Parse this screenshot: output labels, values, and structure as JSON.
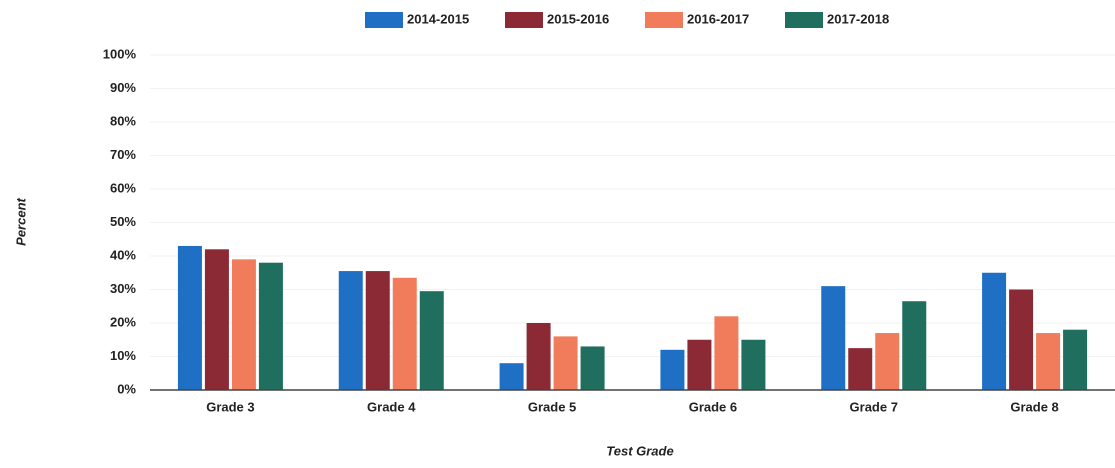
{
  "chart_data": {
    "type": "bar",
    "categories": [
      "Grade 3",
      "Grade 4",
      "Grade 5",
      "Grade 6",
      "Grade 7",
      "Grade 8"
    ],
    "series": [
      {
        "name": "2014-2015",
        "color": "#1f6fc5",
        "values": [
          43,
          35.5,
          8,
          12,
          31,
          35
        ]
      },
      {
        "name": "2015-2016",
        "color": "#8b2a35",
        "values": [
          42,
          35.5,
          20,
          15,
          12.5,
          30
        ]
      },
      {
        "name": "2016-2017",
        "color": "#f07c5c",
        "values": [
          39,
          33.5,
          16,
          22,
          17,
          17
        ]
      },
      {
        "name": "2017-2018",
        "color": "#1f6e5e",
        "values": [
          38,
          29.5,
          13,
          15,
          26.5,
          18
        ]
      }
    ],
    "ylim": [
      0,
      100
    ],
    "yticks": [
      {
        "value": 0,
        "label": "0%"
      },
      {
        "value": 10,
        "label": "10%"
      },
      {
        "value": 20,
        "label": "20%"
      },
      {
        "value": 30,
        "label": "30%"
      },
      {
        "value": 40,
        "label": "40%"
      },
      {
        "value": 50,
        "label": "50%"
      },
      {
        "value": 60,
        "label": "60%"
      },
      {
        "value": 70,
        "label": "70%"
      },
      {
        "value": 80,
        "label": "80%"
      },
      {
        "value": 90,
        "label": "90%"
      },
      {
        "value": 100,
        "label": "100%"
      }
    ],
    "y_label": "Percent",
    "x_label": "Test Grade",
    "grid": true,
    "legend": "top"
  }
}
